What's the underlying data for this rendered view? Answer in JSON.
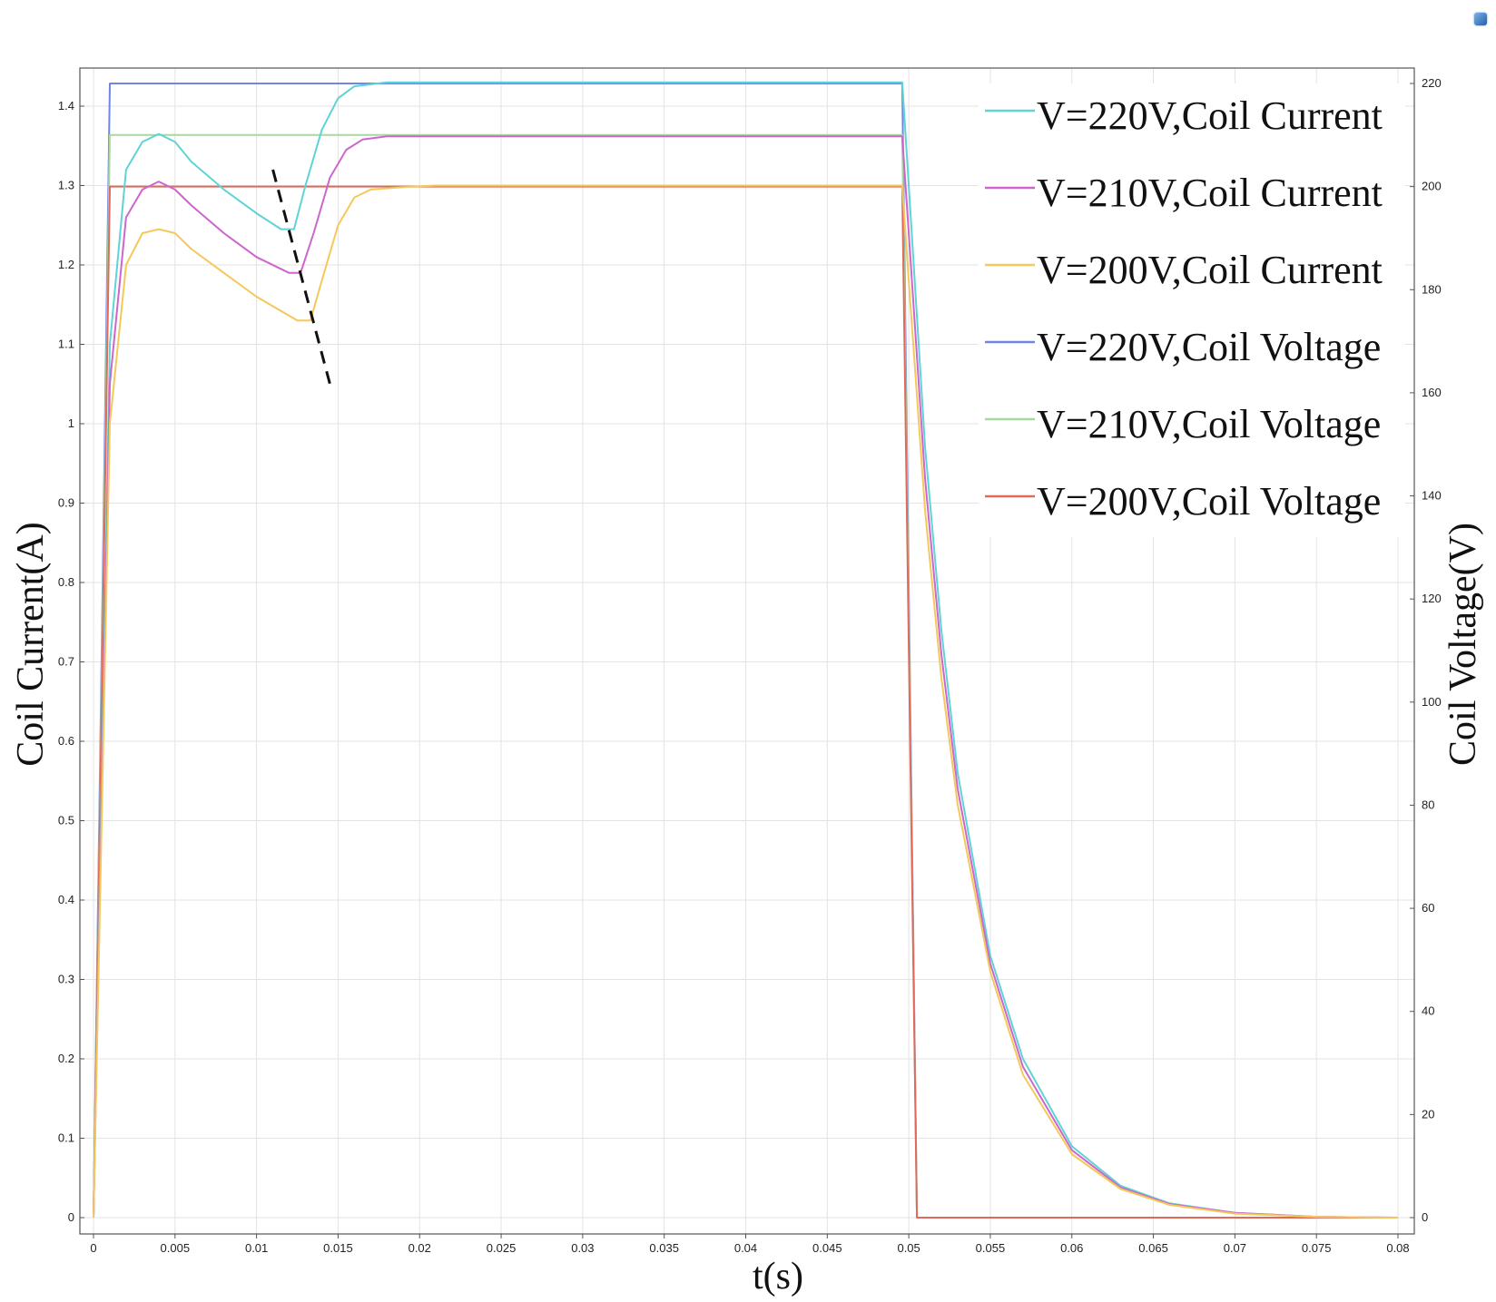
{
  "chart_data": {
    "type": "line",
    "xlabel": "t(s)",
    "ylabel_left": "Coil Current(A)",
    "ylabel_right": "Coil Voltage(V)",
    "xlim": [
      0,
      0.08
    ],
    "ylim_left": [
      0,
      1.4
    ],
    "ylim_right": [
      0,
      220
    ],
    "grid": true,
    "legend_position": "top-right",
    "x_ticks": [
      "0",
      "0.005",
      "0.01",
      "0.015",
      "0.02",
      "0.025",
      "0.03",
      "0.035",
      "0.04",
      "0.045",
      "0.05",
      "0.055",
      "0.06",
      "0.065",
      "0.07",
      "0.075",
      "0.08"
    ],
    "y_left_ticks": [
      "0",
      "0.1",
      "0.2",
      "0.3",
      "0.4",
      "0.5",
      "0.6",
      "0.7",
      "0.8",
      "0.9",
      "1",
      "1.1",
      "1.2",
      "1.3",
      "1.4"
    ],
    "y_right_ticks": [
      "0",
      "20",
      "40",
      "60",
      "80",
      "100",
      "120",
      "140",
      "160",
      "180",
      "200",
      "220"
    ],
    "series": [
      {
        "name": "V=220V,Coil Current",
        "axis": "left",
        "color": "#5fd3d6",
        "x": [
          0,
          0.001,
          0.002,
          0.003,
          0.004,
          0.005,
          0.006,
          0.008,
          0.01,
          0.0115,
          0.0123,
          0.013,
          0.014,
          0.015,
          0.016,
          0.018,
          0.02,
          0.03,
          0.0496,
          0.05,
          0.051,
          0.052,
          0.053,
          0.055,
          0.057,
          0.06,
          0.063,
          0.066,
          0.07,
          0.075,
          0.08
        ],
        "y": [
          0,
          1.1,
          1.32,
          1.355,
          1.365,
          1.355,
          1.33,
          1.295,
          1.265,
          1.245,
          1.245,
          1.3,
          1.37,
          1.41,
          1.425,
          1.43,
          1.43,
          1.43,
          1.43,
          1.3,
          0.97,
          0.74,
          0.56,
          0.33,
          0.2,
          0.09,
          0.04,
          0.018,
          0.006,
          0.001,
          0
        ]
      },
      {
        "name": "V=210V,Coil Current",
        "axis": "left",
        "color": "#cc66cc",
        "x": [
          0,
          0.001,
          0.002,
          0.003,
          0.004,
          0.005,
          0.006,
          0.008,
          0.01,
          0.012,
          0.0127,
          0.0135,
          0.0145,
          0.0155,
          0.0165,
          0.018,
          0.02,
          0.03,
          0.0496,
          0.05,
          0.051,
          0.052,
          0.053,
          0.055,
          0.057,
          0.06,
          0.063,
          0.066,
          0.07,
          0.075,
          0.08
        ],
        "y": [
          0,
          1.05,
          1.26,
          1.295,
          1.305,
          1.295,
          1.275,
          1.24,
          1.21,
          1.19,
          1.19,
          1.24,
          1.31,
          1.345,
          1.358,
          1.362,
          1.362,
          1.362,
          1.362,
          1.24,
          0.93,
          0.71,
          0.54,
          0.32,
          0.19,
          0.085,
          0.038,
          0.017,
          0.006,
          0.001,
          0
        ]
      },
      {
        "name": "V=200V,Coil Current",
        "axis": "left",
        "color": "#f5c85a",
        "x": [
          0,
          0.001,
          0.002,
          0.003,
          0.004,
          0.005,
          0.006,
          0.008,
          0.01,
          0.0125,
          0.0133,
          0.014,
          0.015,
          0.016,
          0.017,
          0.019,
          0.021,
          0.03,
          0.0496,
          0.05,
          0.051,
          0.052,
          0.053,
          0.055,
          0.057,
          0.06,
          0.063,
          0.066,
          0.07,
          0.075,
          0.08
        ],
        "y": [
          0,
          1.0,
          1.2,
          1.24,
          1.245,
          1.24,
          1.22,
          1.19,
          1.16,
          1.13,
          1.13,
          1.18,
          1.25,
          1.285,
          1.295,
          1.298,
          1.3,
          1.3,
          1.3,
          1.18,
          0.89,
          0.68,
          0.52,
          0.31,
          0.18,
          0.08,
          0.036,
          0.016,
          0.005,
          0.001,
          0
        ]
      },
      {
        "name": "V=220V,Coil Voltage",
        "axis": "right",
        "color": "#6f86e8",
        "x": [
          0,
          0.001,
          0.0496,
          0.0505,
          0.08
        ],
        "y": [
          0,
          220,
          220,
          0,
          0
        ]
      },
      {
        "name": "V=210V,Coil Voltage",
        "axis": "right",
        "color": "#a8d8a0",
        "x": [
          0,
          0.001,
          0.0496,
          0.0505,
          0.08
        ],
        "y": [
          0,
          210,
          210,
          0,
          0
        ]
      },
      {
        "name": "V=200V,Coil Voltage",
        "axis": "right",
        "color": "#e06a5a",
        "x": [
          0,
          0.001,
          0.0496,
          0.0505,
          0.08
        ],
        "y": [
          0,
          200,
          200,
          0,
          0
        ]
      }
    ],
    "annotation": {
      "type": "dashed-line",
      "color": "#111111",
      "x": [
        0.011,
        0.0145
      ],
      "y": [
        1.32,
        1.05
      ],
      "axis": "left"
    }
  }
}
